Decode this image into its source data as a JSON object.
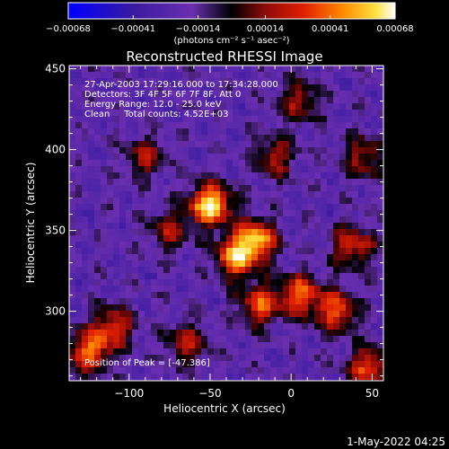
{
  "chart_data": {
    "type": "heatmap",
    "title": "Reconstructed RHESSI Image",
    "xlabel": "Heliocentric X (arcsec)",
    "ylabel": "Heliocentric Y (arcsec)",
    "xlim": [
      -137,
      57
    ],
    "ylim": [
      257,
      452
    ],
    "xticks": [
      -100,
      -50,
      0,
      50
    ],
    "xtick_labels": [
      "−100",
      "−50",
      "0",
      "50"
    ],
    "yticks": [
      300,
      350,
      400,
      450
    ],
    "ytick_labels": [
      "300",
      "350",
      "400",
      "450"
    ],
    "colorbar": {
      "min": -0.00068,
      "max": 0.00068,
      "ticks": [
        -0.00068,
        -0.00041,
        -0.00014,
        0.00014,
        0.00041,
        0.00068
      ],
      "tick_labels": [
        "−0.00068",
        "−0.00041",
        "−0.00014",
        "0.00014",
        "0.00041",
        "0.00068"
      ],
      "unit": "(photons cm⁻² s⁻¹ asec⁻²)",
      "colors": [
        "#0000ff",
        "#3a1aa0",
        "#6a2fb0",
        "#000000",
        "#8a0a0a",
        "#e02000",
        "#ff8a00",
        "#ffe040",
        "#ffffff"
      ]
    },
    "sources": [
      {
        "x": -50,
        "y": 366,
        "peak": 0.00068
      },
      {
        "x": -22,
        "y": 344,
        "peak": 0.00055
      },
      {
        "x": -35,
        "y": 333,
        "peak": 0.00045
      },
      {
        "x": 5,
        "y": 310,
        "peak": 0.0004
      },
      {
        "x": -20,
        "y": 304,
        "peak": 0.00035
      },
      {
        "x": 28,
        "y": 300,
        "peak": 0.00038
      },
      {
        "x": 38,
        "y": 340,
        "peak": 0.0003
      },
      {
        "x": -125,
        "y": 275,
        "peak": 0.0004
      },
      {
        "x": -110,
        "y": 290,
        "peak": 0.0003
      },
      {
        "x": 48,
        "y": 265,
        "peak": 0.00035
      },
      {
        "x": -10,
        "y": 395,
        "peak": 0.00022
      },
      {
        "x": 5,
        "y": 430,
        "peak": 0.0002
      },
      {
        "x": 45,
        "y": 395,
        "peak": 0.0002
      },
      {
        "x": -90,
        "y": 395,
        "peak": 0.00018
      },
      {
        "x": -75,
        "y": 350,
        "peak": 0.00016
      },
      {
        "x": -65,
        "y": 280,
        "peak": 0.00022
      }
    ],
    "annotations": [
      "27-Apr-2003 17:29:16.000 to 17:34:28.000",
      "Detectors: 3F 4F 5F 6F 7F 8F, Att 0",
      "Energy Range: 12.0 - 25.0 keV",
      "Clean     Total counts: 4.52E+03",
      "Position of Peak = [-47.386]"
    ]
  },
  "footer": {
    "date": "1-May-2022 04:25"
  }
}
